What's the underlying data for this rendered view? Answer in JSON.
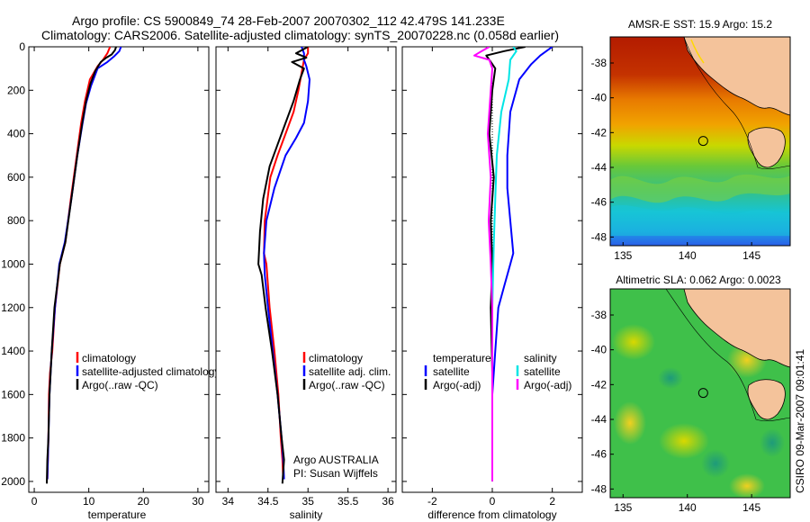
{
  "header": {
    "line1": "Argo profile: CS 5900849_74 28-Feb-2007 20070302_112 42.479S 141.233E",
    "line2": "Climatology: CARS2006. Satellite-adjusted climatology: synTS_20070228.nc (0.058d earlier)"
  },
  "colors": {
    "climatology": "#ff0000",
    "satellite": "#0000ff",
    "argo": "#000000",
    "argo_salinity_diff": "#ff00ff",
    "satellite_salinity_diff": "#00e5e5",
    "land": "#f4c39b"
  },
  "chart_data": [
    {
      "type": "line",
      "panel": "temperature",
      "xlabel": "temperature",
      "ylabel": "",
      "xlim": [
        -1,
        32
      ],
      "ylim": [
        2050,
        0
      ],
      "x_ticks": [
        0,
        10,
        20,
        30
      ],
      "y_ticks": [
        0,
        200,
        400,
        600,
        800,
        1000,
        1200,
        1400,
        1600,
        1800,
        2000
      ],
      "legend": {
        "entries": [
          "climatology",
          "satellite-adjusted climatology",
          "Argo(..raw -QC)"
        ],
        "placement": "lower-right"
      },
      "series": [
        {
          "name": "climatology",
          "color": "#ff0000",
          "x": [
            13.9,
            13.4,
            12.6,
            11.6,
            10.2,
            9.3,
            8.6,
            7.8,
            6.7,
            5.7,
            4.7,
            3.8,
            3.3,
            2.9,
            2.7,
            2.6,
            2.5,
            2.4
          ],
          "y": [
            0,
            30,
            60,
            90,
            150,
            250,
            350,
            500,
            700,
            900,
            1000,
            1200,
            1400,
            1500,
            1600,
            1800,
            1900,
            1990
          ]
        },
        {
          "name": "satellite-adjusted climatology",
          "color": "#0000ff",
          "x": [
            15.9,
            15.6,
            14.6,
            13.4,
            11.6,
            10.4,
            9.5,
            8.8,
            7.9,
            6.8,
            5.6,
            4.6,
            3.8,
            3.2,
            2.8,
            2.6,
            2.5,
            2.4
          ],
          "y": [
            0,
            20,
            45,
            70,
            100,
            180,
            260,
            360,
            500,
            700,
            900,
            1000,
            1200,
            1400,
            1600,
            1800,
            1900,
            1990
          ]
        },
        {
          "name": "Argo(..raw -QC)",
          "color": "#000000",
          "x": [
            15.0,
            14.8,
            14.2,
            13.2,
            12.2,
            11.2,
            10.3,
            9.5,
            8.8,
            7.9,
            6.8,
            5.7,
            4.7,
            3.7,
            3.2,
            2.8,
            2.6,
            2.4,
            2.3
          ],
          "y": [
            0,
            15,
            35,
            50,
            70,
            110,
            170,
            250,
            350,
            500,
            700,
            900,
            1000,
            1200,
            1400,
            1600,
            1800,
            1900,
            2010
          ]
        }
      ]
    },
    {
      "type": "line",
      "panel": "salinity",
      "xlabel": "salinity",
      "ylabel": "",
      "xlim": [
        33.85,
        36.1
      ],
      "ylim": [
        2050,
        0
      ],
      "x_ticks": [
        34,
        34.5,
        35,
        35.5,
        36
      ],
      "x_tick_labels": [
        "34",
        "34.5",
        "35",
        "35.5",
        "36"
      ],
      "legend": {
        "entries": [
          "climatology",
          "satellite adj. clim.",
          "Argo(..raw -QC)"
        ],
        "placement": "lower-right"
      },
      "annotation": [
        "Argo AUSTRALIA",
        "PI: Susan Wijffels"
      ],
      "series": [
        {
          "name": "climatology",
          "color": "#ff0000",
          "x": [
            35.0,
            35.0,
            34.95,
            34.93,
            34.88,
            34.82,
            34.72,
            34.62,
            34.53,
            34.46,
            34.45,
            34.48,
            34.52,
            34.58,
            34.63,
            34.66,
            34.68,
            34.69
          ],
          "y": [
            0,
            30,
            60,
            100,
            200,
            300,
            400,
            500,
            600,
            800,
            950,
            1000,
            1200,
            1400,
            1600,
            1800,
            1900,
            1990
          ]
        },
        {
          "name": "satellite adj. clim.",
          "color": "#0000ff",
          "x": [
            34.92,
            34.95,
            34.95,
            34.98,
            35.02,
            35.0,
            34.95,
            34.85,
            34.72,
            34.58,
            34.48,
            34.45,
            34.46,
            34.5,
            34.56,
            34.62,
            34.67,
            34.69,
            34.7
          ],
          "y": [
            0,
            30,
            60,
            90,
            150,
            250,
            350,
            420,
            500,
            650,
            800,
            950,
            1050,
            1200,
            1400,
            1600,
            1800,
            1900,
            1990
          ]
        },
        {
          "name": "Argo(..raw -QC)",
          "color": "#000000",
          "x": [
            35.0,
            34.85,
            34.98,
            34.8,
            34.95,
            34.9,
            34.82,
            34.72,
            34.62,
            34.52,
            34.44,
            34.4,
            34.38,
            34.42,
            34.47,
            34.55,
            34.62,
            34.67,
            34.7,
            34.68
          ],
          "y": [
            0,
            30,
            50,
            70,
            100,
            150,
            250,
            350,
            450,
            550,
            700,
            850,
            1000,
            1050,
            1200,
            1400,
            1600,
            1800,
            1900,
            2010
          ]
        }
      ]
    },
    {
      "type": "line",
      "panel": "difference",
      "xlabel": "difference from climatology",
      "ylabel": "",
      "xlim": [
        -3.0,
        3.0
      ],
      "ylim": [
        2050,
        0
      ],
      "x_ticks": [
        -2,
        0,
        2
      ],
      "legend": {
        "entries": [
          "temperature",
          "satellite",
          "Argo(-adj)",
          "salinity",
          "satellite",
          "Argo(-adj)"
        ],
        "placement": "lower-center"
      },
      "series": [
        {
          "name": "temperature satellite",
          "color": "#0000ff",
          "x": [
            2.0,
            1.6,
            1.3,
            0.9,
            0.6,
            0.5,
            0.5,
            0.6,
            0.7,
            0.6,
            0.4,
            0.2,
            0.1,
            0.0,
            0.0,
            0.0,
            0.0
          ],
          "y": [
            0,
            40,
            80,
            150,
            300,
            500,
            650,
            800,
            950,
            1000,
            1100,
            1200,
            1400,
            1600,
            1800,
            1900,
            1990
          ]
        },
        {
          "name": "temperature Argo(-adj)",
          "color": "#000000",
          "x": [
            1.1,
            0.4,
            -0.2,
            -0.1,
            0.1,
            0.0,
            -0.1,
            0.05,
            -0.05,
            0.0,
            -0.05,
            0.0,
            0.0,
            0.0
          ],
          "y": [
            0,
            20,
            40,
            60,
            100,
            200,
            400,
            600,
            800,
            1000,
            1200,
            1500,
            1800,
            2000
          ]
        },
        {
          "name": "salinity satellite",
          "color": "#00e5e5",
          "x": [
            0.7,
            0.8,
            0.6,
            0.55,
            0.3,
            0.15,
            0.1,
            0.05,
            0.0,
            0.0,
            0.0
          ],
          "y": [
            0,
            20,
            60,
            150,
            300,
            500,
            700,
            900,
            1200,
            1600,
            1990
          ]
        },
        {
          "name": "salinity Argo(-adj)",
          "color": "#ff00ff",
          "x": [
            -0.1,
            -0.35,
            -0.6,
            -0.1,
            0.0,
            -0.05,
            -0.15,
            -0.05,
            -0.12,
            -0.05,
            0.0,
            0.0,
            0.0
          ],
          "y": [
            0,
            20,
            40,
            60,
            100,
            200,
            400,
            600,
            800,
            1000,
            1200,
            1600,
            2000
          ]
        }
      ]
    },
    {
      "type": "heatmap",
      "panel": "sst-map",
      "title": "AMSR-E SST: 15.9 Argo: 15.2",
      "xlim": [
        134,
        148
      ],
      "ylim": [
        -48.5,
        -36.5
      ],
      "x_ticks": [
        135,
        140,
        145
      ],
      "y_ticks": [
        -38,
        -40,
        -42,
        -44,
        -46,
        -48
      ],
      "marker": {
        "lon": 141.233,
        "lat": -42.479
      }
    },
    {
      "type": "heatmap",
      "panel": "sla-map",
      "title": "Altimetric SLA: 0.062 Argo: 0.0023",
      "xlim": [
        134,
        148
      ],
      "ylim": [
        -48.5,
        -36.5
      ],
      "x_ticks": [
        135,
        140,
        145
      ],
      "y_ticks": [
        -38,
        -40,
        -42,
        -44,
        -46,
        -48
      ],
      "marker": {
        "lon": 141.233,
        "lat": -42.479
      }
    }
  ],
  "side_label": "CSIRO 09-Mar-2007 09:01:41"
}
